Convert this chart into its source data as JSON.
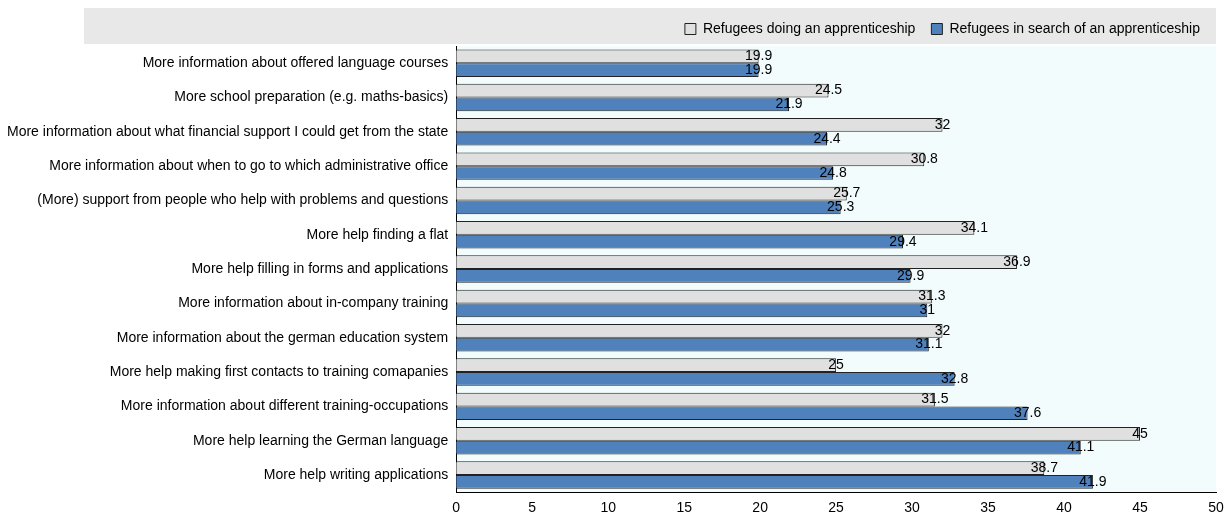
{
  "chart_data": {
    "type": "bar",
    "orientation": "horizontal",
    "categories": [
      "More information about offered language courses",
      "More school preparation (e.g. maths-basics)",
      "More information about what financial support I could get from the state",
      "More information about when to go to which administrative office",
      "(More) support from people who help with problems and questions",
      "More help finding a flat",
      "More help filling in forms and applications",
      "More information about in-company training",
      "More information about the german education system",
      "More help making first contacts to training comapanies",
      "More information about different training-occupations",
      "More help learning the German language",
      "More help writing applications"
    ],
    "series": [
      {
        "name": "Refugees doing an apprenticeship",
        "color": "#e0e0e0",
        "values": [
          19.9,
          24.5,
          32,
          30.8,
          25.7,
          34.1,
          36.9,
          31.3,
          32,
          25,
          31.5,
          45,
          38.7
        ]
      },
      {
        "name": "Refugees in search of an apprenticeship",
        "color": "#4f81bd",
        "values": [
          19.9,
          21.9,
          24.4,
          24.8,
          25.3,
          29.4,
          29.9,
          31,
          31.1,
          32.8,
          37.6,
          41.1,
          41.9
        ]
      }
    ],
    "xlim": [
      0,
      50
    ],
    "xticks": [
      0,
      5,
      10,
      15,
      20,
      25,
      30,
      35,
      40,
      45,
      50
    ],
    "data_labels": true,
    "legend": "top right",
    "grid": false
  }
}
